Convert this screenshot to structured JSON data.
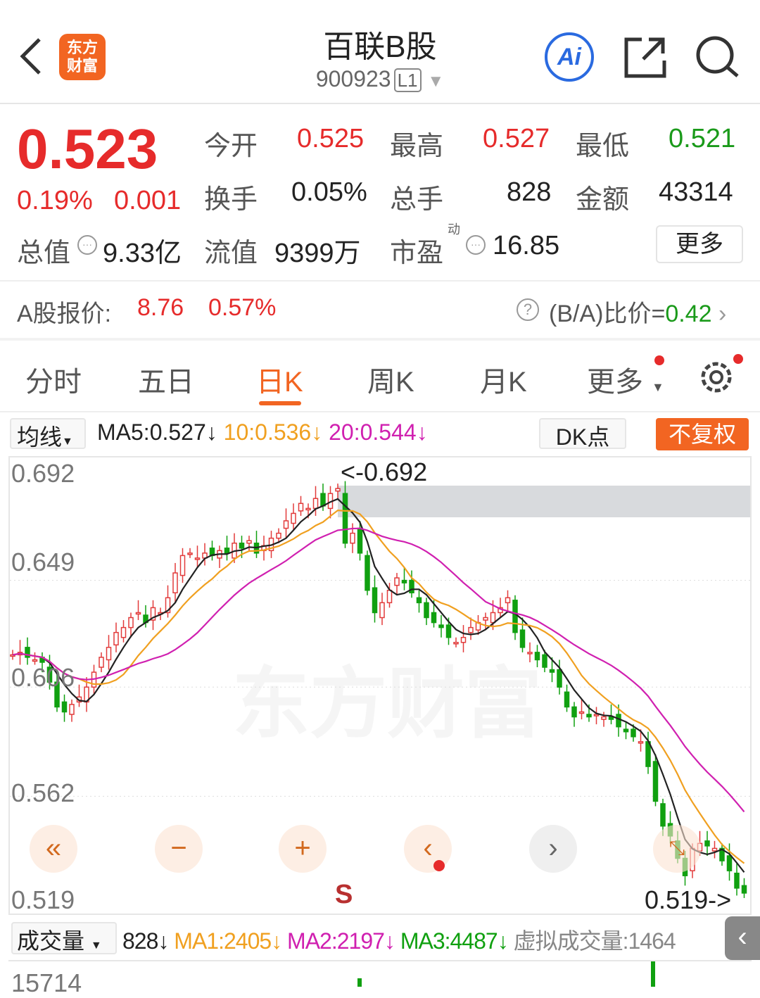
{
  "header": {
    "title": "百联B股",
    "code": "900923",
    "level": "L1",
    "logo_text": "东方财富",
    "icons": [
      "back-icon",
      "ai-icon",
      "share-icon",
      "search-icon"
    ]
  },
  "quote": {
    "price": "0.523",
    "change_pct": "0.19%",
    "change": "0.001",
    "open_label": "今开",
    "open": "0.525",
    "high_label": "最高",
    "high": "0.527",
    "low_label": "最低",
    "low": "0.521",
    "turnover_label": "换手",
    "turnover": "0.05%",
    "volume_label": "总手",
    "volume": "828",
    "amount_label": "金额",
    "amount": "43314",
    "mcap_label": "总值",
    "mcap": "9.33亿",
    "float_label": "流值",
    "float": "9399万",
    "pe_label": "市盈",
    "pe_sup": "动",
    "pe": "16.85",
    "more": "更多"
  },
  "ashare": {
    "label": "A股报价:",
    "price": "8.76",
    "pct": "0.57%",
    "ratio_label": "(B/A)比价=",
    "ratio": "0.42"
  },
  "tabs": [
    "分时",
    "五日",
    "日K",
    "周K",
    "月K",
    "更多"
  ],
  "active_tab": "日K",
  "ma_bar": {
    "selector": "均线",
    "ma5": "MA5:0.527↓",
    "ma10": "10:0.536↓",
    "ma20": "20:0.544↓",
    "dk": "DK点",
    "adjust": "不复权"
  },
  "colors": {
    "up": "#e23b3b",
    "down": "#10a010",
    "ma5": "#222222",
    "ma10": "#f0a020",
    "ma20": "#d020b0",
    "accent": "#f26522"
  },
  "chart_data": {
    "type": "candlestick",
    "y_ticks": [
      "0.692",
      "0.649",
      "0.606",
      "0.562",
      "0.519"
    ],
    "ylim": [
      0.519,
      0.692
    ],
    "max_label": "<-0.692",
    "min_label": "0.519->",
    "watermark": "东方财富",
    "signal": "S",
    "closes": [
      0.619,
      0.62,
      0.618,
      0.617,
      0.616,
      0.608,
      0.598,
      0.596,
      0.599,
      0.602,
      0.606,
      0.612,
      0.618,
      0.622,
      0.628,
      0.63,
      0.634,
      0.636,
      0.632,
      0.638,
      0.636,
      0.642,
      0.652,
      0.659,
      0.66,
      0.658,
      0.66,
      0.659,
      0.661,
      0.66,
      0.664,
      0.662,
      0.665,
      0.66,
      0.663,
      0.666,
      0.668,
      0.673,
      0.676,
      0.68,
      0.678,
      0.682,
      0.679,
      0.684,
      0.686,
      0.664,
      0.668,
      0.66,
      0.645,
      0.636,
      0.64,
      0.645,
      0.65,
      0.648,
      0.644,
      0.64,
      0.634,
      0.632,
      0.63,
      0.626,
      0.624,
      0.626,
      0.63,
      0.632,
      0.634,
      0.636,
      0.638,
      0.642,
      0.628,
      0.622,
      0.62,
      0.617,
      0.614,
      0.612,
      0.606,
      0.598,
      0.594,
      0.596,
      0.594,
      0.595,
      0.594,
      0.593,
      0.59,
      0.588,
      0.586,
      0.584,
      0.574,
      0.56,
      0.55,
      0.546,
      0.537,
      0.53,
      0.541,
      0.543,
      0.542,
      0.541,
      0.536,
      0.532,
      0.525,
      0.523
    ]
  },
  "volume_bar": {
    "selector": "成交量",
    "vol": "828↓",
    "ma1": "MA1:2405↓",
    "ma2": "MA2:2197↓",
    "ma3": "MA3:4487↓",
    "virtual": "虚拟成交量:1464",
    "top_tick": "15714"
  }
}
